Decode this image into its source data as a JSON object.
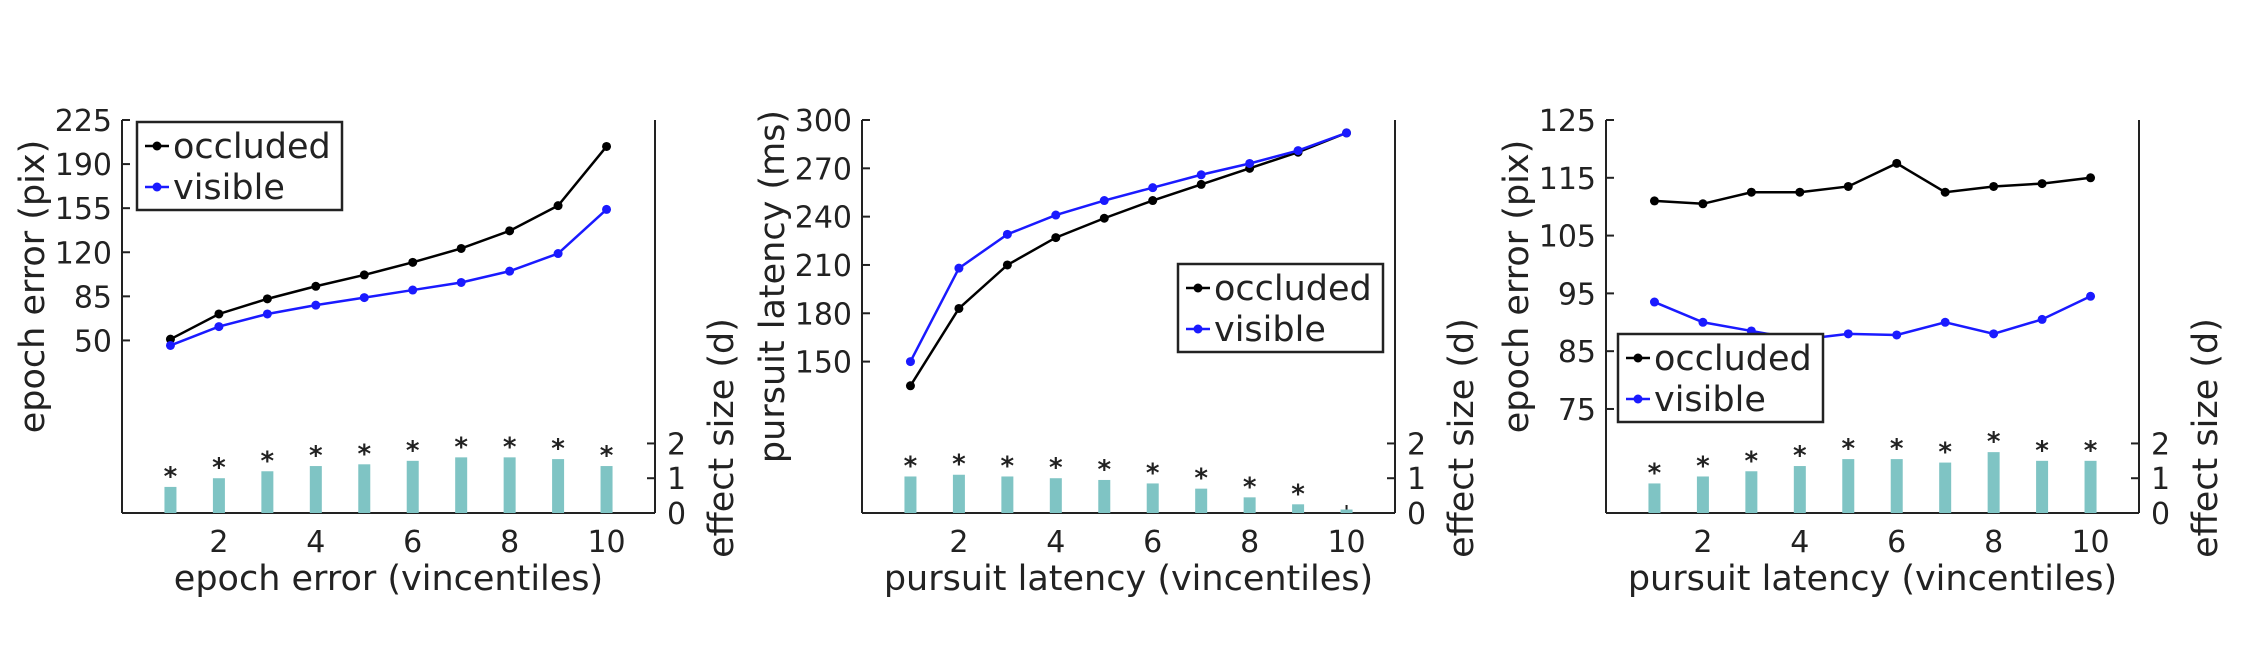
{
  "colors": {
    "occluded": "#000000",
    "visible": "#1a1aff",
    "effect_bar": "#7fc4c4",
    "axis": "#222222"
  },
  "chart_data": [
    {
      "type": "line",
      "xlabel": "epoch error (vincentiles)",
      "ylabel": "epoch error (pix)",
      "y2label": "effect size (d)",
      "x": [
        1,
        2,
        3,
        4,
        5,
        6,
        7,
        8,
        9,
        10
      ],
      "xticks": [
        2,
        4,
        6,
        8,
        10
      ],
      "yticks": [
        50,
        85,
        120,
        155,
        190,
        225
      ],
      "ylim": [
        -87,
        225
      ],
      "y2ticks": [
        0,
        1,
        2
      ],
      "y2lim": [
        0,
        11.3
      ],
      "legend_position": "top-left",
      "series": [
        {
          "name": "occluded",
          "values": [
            51,
            71,
            83,
            93,
            102,
            112,
            123,
            137,
            157,
            204
          ]
        },
        {
          "name": "visible",
          "values": [
            46,
            61,
            71,
            78,
            84,
            90,
            96,
            105,
            119,
            154
          ]
        }
      ],
      "effect_size": [
        0.75,
        1.0,
        1.2,
        1.35,
        1.4,
        1.5,
        1.6,
        1.6,
        1.55,
        1.35
      ],
      "significant": [
        true,
        true,
        true,
        true,
        true,
        true,
        true,
        true,
        true,
        true
      ]
    },
    {
      "type": "line",
      "xlabel": "pursuit latency (vincentiles)",
      "ylabel": "pursuit latency (ms)",
      "y2label": "effect size (d)",
      "x": [
        1,
        2,
        3,
        4,
        5,
        6,
        7,
        8,
        9,
        10
      ],
      "xticks": [
        2,
        4,
        6,
        8,
        10
      ],
      "yticks": [
        150,
        180,
        210,
        240,
        270,
        300
      ],
      "ylim": [
        56,
        300
      ],
      "y2ticks": [
        0,
        1,
        2
      ],
      "y2lim": [
        0,
        11.3
      ],
      "legend_position": "middle-right",
      "series": [
        {
          "name": "occluded",
          "values": [
            135,
            183,
            210,
            227,
            239,
            250,
            260,
            270,
            280,
            292
          ]
        },
        {
          "name": "visible",
          "values": [
            150,
            208,
            229,
            241,
            250,
            258,
            266,
            273,
            281,
            292
          ]
        }
      ],
      "effect_size": [
        1.05,
        1.1,
        1.05,
        1.0,
        0.95,
        0.85,
        0.7,
        0.45,
        0.25,
        0.1
      ],
      "significant": [
        true,
        true,
        true,
        true,
        true,
        true,
        true,
        true,
        true,
        false
      ]
    },
    {
      "type": "line",
      "xlabel": "pursuit latency (vincentiles)",
      "ylabel": "epoch error (pix)",
      "y2label": "effect size (d)",
      "x": [
        1,
        2,
        3,
        4,
        5,
        6,
        7,
        8,
        9,
        10
      ],
      "xticks": [
        2,
        4,
        6,
        8,
        10
      ],
      "yticks": [
        75,
        85,
        95,
        105,
        115,
        125
      ],
      "ylim": [
        57,
        125
      ],
      "y2ticks": [
        0,
        1,
        2
      ],
      "y2lim": [
        0,
        11.3
      ],
      "legend_position": "middle-left",
      "series": [
        {
          "name": "occluded",
          "values": [
            111,
            110.5,
            112.5,
            112.5,
            113.5,
            117.5,
            112.5,
            113.5,
            114,
            115
          ]
        },
        {
          "name": "visible",
          "values": [
            93.5,
            90,
            88.5,
            87,
            88,
            87.8,
            90,
            88,
            90.5,
            94.5
          ]
        }
      ],
      "effect_size": [
        0.85,
        1.05,
        1.2,
        1.35,
        1.55,
        1.55,
        1.45,
        1.75,
        1.5,
        1.5
      ],
      "significant": [
        true,
        true,
        true,
        true,
        true,
        true,
        true,
        true,
        true,
        true
      ]
    }
  ]
}
